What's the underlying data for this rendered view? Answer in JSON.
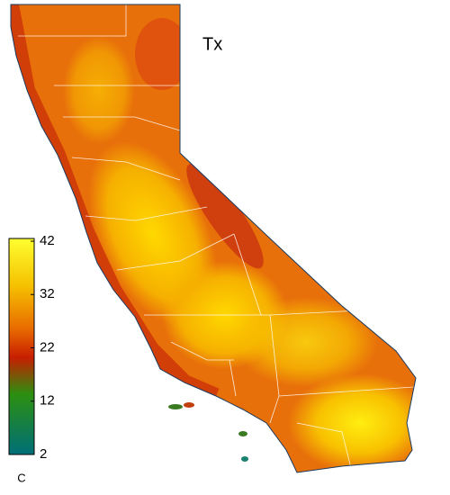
{
  "title": "Tx",
  "colorbar": {
    "label": "C",
    "range": [
      2,
      42
    ],
    "ticks": [
      42,
      32,
      22,
      12,
      2
    ]
  }
}
